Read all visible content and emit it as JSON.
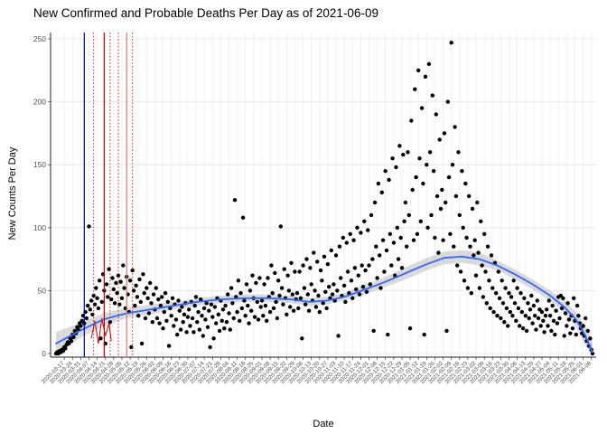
{
  "chart_data": {
    "type": "scatter",
    "title": "New Confirmed and Probable Deaths Per Day as of 2021-06-09",
    "xlabel": "Date",
    "ylabel": "New Counts Per Day",
    "legend": "none",
    "grid": true,
    "point_color": "#000000",
    "ribbon_color": "#999999",
    "smooth_color": "#3366FF",
    "start_date": "2020-03-10",
    "end_date": "2021-06-09",
    "y_axis": {
      "min": 0,
      "max": 250,
      "ticks": [
        0,
        50,
        100,
        150,
        200,
        250
      ]
    },
    "x_ticks": [
      "2020-03-17",
      "2020-03-24",
      "2020-03-31",
      "2020-04-07",
      "2020-04-14",
      "2020-04-21",
      "2020-04-28",
      "2020-05-05",
      "2020-05-12",
      "2020-05-19",
      "2020-05-26",
      "2020-06-02",
      "2020-06-09",
      "2020-06-16",
      "2020-06-23",
      "2020-06-30",
      "2020-07-07",
      "2020-07-14",
      "2020-07-21",
      "2020-07-28",
      "2020-08-04",
      "2020-08-11",
      "2020-08-18",
      "2020-08-25",
      "2020-09-01",
      "2020-09-08",
      "2020-09-15",
      "2020-09-22",
      "2020-09-29",
      "2020-10-06",
      "2020-10-13",
      "2020-10-20",
      "2020-10-27",
      "2020-11-03",
      "2020-11-10",
      "2020-11-17",
      "2020-11-24",
      "2020-12-01",
      "2020-12-08",
      "2020-12-15",
      "2020-12-22",
      "2020-12-29",
      "2021-01-05",
      "2021-01-12",
      "2021-01-19",
      "2021-01-26",
      "2021-02-02",
      "2021-02-09",
      "2021-02-16",
      "2021-02-23",
      "2021-03-02",
      "2021-03-09",
      "2021-03-16",
      "2021-03-23",
      "2021-03-30",
      "2021-04-06",
      "2021-04-13",
      "2021-04-20",
      "2021-04-27",
      "2021-05-04",
      "2021-05-11",
      "2021-05-18",
      "2021-05-25",
      "2021-06-01",
      "2021-06-08"
    ],
    "months": [
      "2020-03",
      "2020-04",
      "2020-05",
      "2020-06",
      "2020-07",
      "2020-08",
      "2020-09",
      "2020-10",
      "2020-11",
      "2020-12",
      "2021-01",
      "2021-02",
      "2021-03",
      "2021-04",
      "2021-05",
      "2021-06"
    ],
    "daily_values": {
      "2020-03": [
        0,
        1,
        0,
        2,
        1,
        3,
        2,
        5,
        4,
        7,
        9,
        8,
        12,
        10,
        15,
        13,
        18,
        16,
        21,
        19,
        24,
        22
      ],
      "2020-04": [
        26,
        30,
        24,
        33,
        28,
        38,
        101,
        35,
        42,
        31,
        46,
        39,
        52,
        44,
        36,
        58,
        12,
        41,
        63,
        50,
        8,
        55,
        45,
        67,
        25,
        43,
        60,
        51,
        40,
        56
      ],
      "2020-05": [
        48,
        62,
        39,
        57,
        44,
        70,
        52,
        36,
        61,
        47,
        33,
        58,
        5,
        66,
        50,
        38,
        54,
        45,
        30,
        59,
        41,
        8,
        63,
        48,
        28,
        52,
        44,
        32,
        56,
        40,
        25
      ],
      "2020-06": [
        47,
        35,
        52,
        28,
        43,
        24,
        38,
        45,
        20,
        33,
        48,
        26,
        41,
        6,
        36,
        30,
        44,
        22,
        39,
        27,
        15,
        42,
        34,
        19,
        37,
        25,
        31,
        40,
        17,
        29
      ],
      "2020-07": [
        35,
        22,
        41,
        28,
        17,
        38,
        45,
        25,
        33,
        19,
        43,
        30,
        14,
        36,
        27,
        40,
        21,
        34,
        5,
        39,
        29,
        12,
        37,
        24,
        44,
        31,
        18,
        42,
        26,
        35,
        20
      ],
      "2020-08": [
        38,
        25,
        47,
        32,
        19,
        52,
        40,
        28,
        122,
        45,
        33,
        58,
        26,
        48,
        36,
        108,
        42,
        30,
        55,
        38,
        24,
        50,
        34,
        62,
        44,
        29,
        56,
        41,
        27,
        60,
        37
      ],
      "2020-09": [
        42,
        30,
        55,
        38,
        26,
        60,
        45,
        33,
        70,
        48,
        36,
        64,
        41,
        28,
        58,
        46,
        101,
        52,
        39,
        67,
        44,
        31,
        62,
        50,
        37,
        72,
        47,
        34,
        65,
        43
      ],
      "2020-10": [
        48,
        36,
        65,
        44,
        12,
        70,
        52,
        39,
        75,
        47,
        34,
        68,
        55,
        42,
        80,
        50,
        37,
        73,
        46,
        33,
        66,
        58,
        40,
        77,
        49,
        36,
        71,
        53,
        44,
        82,
        47
      ],
      "2020-11": [
        55,
        42,
        78,
        50,
        14,
        85,
        60,
        46,
        92,
        54,
        41,
        88,
        65,
        48,
        95,
        58,
        44,
        90,
        68,
        51,
        100,
        62,
        47,
        96,
        70,
        53,
        105,
        66,
        49,
        98
      ],
      "2020-12": [
        70,
        55,
        110,
        75,
        18,
        120,
        85,
        60,
        135,
        78,
        52,
        128,
        90,
        65,
        145,
        82,
        15,
        138,
        95,
        70,
        155,
        88,
        62,
        148,
        100,
        75,
        165,
        92,
        68,
        158,
        105
      ],
      "2021-01": [
        120,
        85,
        160,
        110,
        20,
        185,
        130,
        90,
        210,
        140,
        95,
        225,
        155,
        105,
        195,
        135,
        15,
        220,
        150,
        100,
        230,
        160,
        110,
        205,
        145,
        92,
        190,
        125,
        80,
        170,
        115
      ],
      "2021-02": [
        130,
        90,
        175,
        120,
        18,
        200,
        140,
        95,
        247,
        150,
        85,
        180,
        125,
        70,
        160,
        110,
        65,
        145,
        100,
        58,
        135,
        92,
        52,
        125,
        85,
        48,
        115,
        78
      ],
      "2021-03": [
        90,
        62,
        120,
        80,
        52,
        105,
        70,
        45,
        95,
        65,
        40,
        85,
        58,
        36,
        78,
        52,
        33,
        72,
        48,
        30,
        65,
        44,
        28,
        58,
        40,
        25,
        52,
        36,
        22,
        48,
        33
      ],
      "2021-04": [
        45,
        30,
        58,
        40,
        26,
        52,
        36,
        22,
        48,
        33,
        20,
        44,
        30,
        18,
        40,
        28,
        35,
        46,
        24,
        38,
        30,
        19,
        42,
        28,
        35,
        22,
        33,
        26,
        17,
        30
      ],
      "2021-05": [
        35,
        22,
        42,
        30,
        18,
        38,
        26,
        15,
        34,
        24,
        45,
        28,
        46,
        36,
        44,
        14,
        32,
        22,
        40,
        27,
        16,
        30,
        20,
        44,
        26,
        15,
        38,
        30,
        24,
        20,
        16
      ],
      "2021-06": [
        22,
        14,
        28,
        10,
        18,
        6,
        12,
        3,
        0
      ]
    },
    "smooth": {
      "days": [
        0,
        20,
        40,
        60,
        80,
        100,
        120,
        140,
        160,
        180,
        200,
        215,
        230,
        245,
        260,
        280,
        300,
        315,
        330,
        345,
        360,
        375,
        390,
        405,
        420,
        432,
        442,
        450,
        456
      ],
      "values": [
        8,
        18,
        27,
        32,
        35,
        38,
        41,
        43,
        44,
        44,
        43,
        41,
        42,
        45,
        50,
        57,
        65,
        71,
        76,
        77,
        75,
        70,
        63,
        55,
        46,
        37,
        27,
        14,
        1
      ],
      "half_widths": [
        9,
        6,
        5,
        4,
        4,
        3,
        3,
        3,
        3,
        3,
        3,
        3,
        3,
        3,
        4,
        4,
        5,
        5,
        5,
        5,
        5,
        4,
        4,
        4,
        4,
        5,
        6,
        8,
        9
      ]
    },
    "reference_lines": [
      {
        "date": "2020-04-03",
        "color": "#00008b",
        "style": "solid"
      },
      {
        "date": "2020-04-11",
        "color": "#cc0000",
        "style": "dotted"
      },
      {
        "date": "2020-04-20",
        "color": "#cc0000",
        "style": "solid"
      },
      {
        "date": "2020-04-25",
        "color": "#cc0000",
        "style": "dotted"
      },
      {
        "date": "2020-05-02",
        "color": "#cc0000",
        "style": "dotted"
      },
      {
        "date": "2020-05-09",
        "color": "#e57373",
        "style": "solid"
      },
      {
        "date": "2020-05-14",
        "color": "#cc0000",
        "style": "dotted"
      }
    ],
    "red_segment": {
      "color": "#cc0000",
      "days": [
        30,
        33,
        36,
        39,
        42,
        45,
        47
      ],
      "values": [
        12,
        26,
        8,
        28,
        14,
        24,
        10
      ]
    }
  }
}
